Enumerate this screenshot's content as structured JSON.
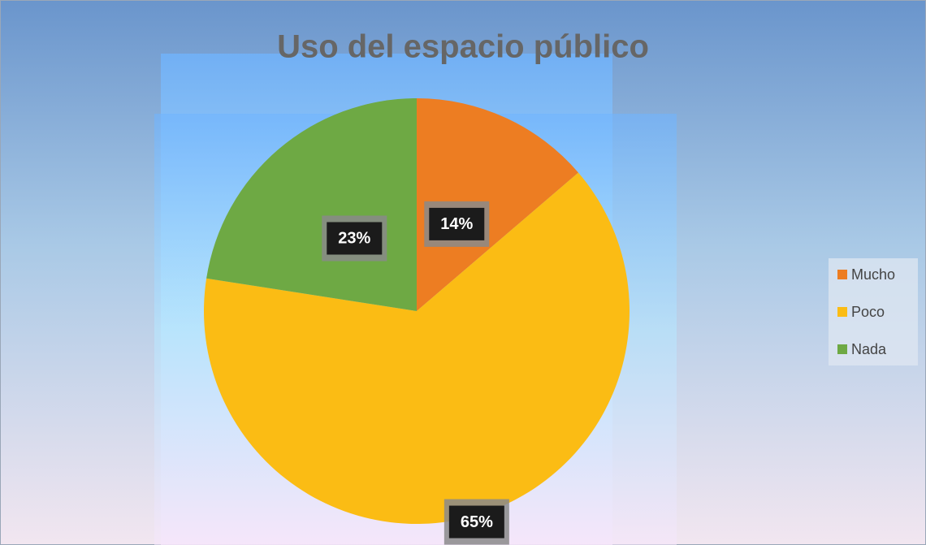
{
  "chart_data": {
    "type": "pie",
    "title": "Uso del espacio público",
    "categories": [
      "Mucho",
      "Poco",
      "Nada"
    ],
    "values": [
      14,
      65,
      23
    ],
    "value_labels": [
      "14%",
      "65%",
      "23%"
    ],
    "colors": [
      "#ed7d22",
      "#fbbc14",
      "#6ea944"
    ],
    "legend": "right"
  }
}
